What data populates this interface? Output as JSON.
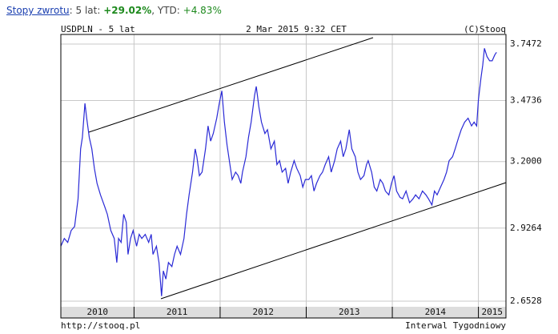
{
  "header": {
    "link": "Stopy zwrotu",
    "period_label": ": 5 lat:",
    "period_return": "+29.02%",
    "ytd_label": ", YTD:",
    "ytd_return": "+4.83%"
  },
  "chart_data": {
    "type": "line",
    "title": "USDPLN - 5 lat",
    "subtitle": "2 Mar 2015 9:32 CET",
    "credit": "(C)Stooq",
    "footer_left": "http://stooq.pl",
    "footer_right": "Interwal Tygodniowy",
    "log_scale": true,
    "grid": true,
    "xlim": [
      2010.15,
      2015.32
    ],
    "xticks": [
      2010,
      2011,
      2012,
      2013,
      2014,
      2015
    ],
    "ylim": [
      2.633,
      3.796
    ],
    "yticks": [
      3.7472,
      3.4736,
      {
        "value": 3.2,
        "label": "3.2000"
      },
      2.9264,
      2.6528
    ],
    "series": [
      {
        "color": "#2a2ad6",
        "x": [
          2010.15,
          2010.19,
          2010.23,
          2010.27,
          2010.31,
          2010.35,
          2010.38,
          2010.4,
          2010.43,
          2010.45,
          2010.48,
          2010.51,
          2010.54,
          2010.57,
          2010.61,
          2010.66,
          2010.69,
          2010.73,
          2010.77,
          2010.8,
          2010.82,
          2010.85,
          2010.88,
          2010.91,
          2010.93,
          2010.96,
          2010.99,
          2011.03,
          2011.06,
          2011.09,
          2011.13,
          2011.17,
          2011.2,
          2011.22,
          2011.26,
          2011.29,
          2011.32,
          2011.34,
          2011.37,
          2011.4,
          2011.44,
          2011.47,
          2011.5,
          2011.54,
          2011.58,
          2011.61,
          2011.64,
          2011.68,
          2011.71,
          2011.73,
          2011.76,
          2011.79,
          2011.83,
          2011.86,
          2011.89,
          2011.92,
          2011.96,
          2011.99,
          2012.02,
          2012.05,
          2012.08,
          2012.12,
          2012.14,
          2012.18,
          2012.21,
          2012.24,
          2012.26,
          2012.3,
          2012.33,
          2012.36,
          2012.4,
          2012.42,
          2012.45,
          2012.48,
          2012.52,
          2012.55,
          2012.59,
          2012.63,
          2012.66,
          2012.69,
          2012.72,
          2012.76,
          2012.79,
          2012.82,
          2012.86,
          2012.89,
          2012.93,
          2012.96,
          2012.99,
          2013.03,
          2013.06,
          2013.09,
          2013.12,
          2013.16,
          2013.19,
          2013.22,
          2013.26,
          2013.29,
          2013.33,
          2013.36,
          2013.4,
          2013.43,
          2013.46,
          2013.5,
          2013.53,
          2013.57,
          2013.6,
          2013.63,
          2013.67,
          2013.7,
          2013.72,
          2013.76,
          2013.79,
          2013.82,
          2013.86,
          2013.89,
          2013.92,
          2013.96,
          2013.99,
          2014.02,
          2014.05,
          2014.09,
          2014.12,
          2014.16,
          2014.2,
          2014.24,
          2014.27,
          2014.31,
          2014.35,
          2014.39,
          2014.42,
          2014.46,
          2014.49,
          2014.52,
          2014.56,
          2014.6,
          2014.63,
          2014.66,
          2014.7,
          2014.73,
          2014.77,
          2014.8,
          2014.84,
          2014.88,
          2014.92,
          2014.95,
          2014.98,
          2015.0,
          2015.03,
          2015.05,
          2015.07,
          2015.1,
          2015.13,
          2015.16,
          2015.19,
          2015.21
        ],
        "values": [
          2.856,
          2.886,
          2.871,
          2.917,
          2.933,
          3.044,
          3.255,
          3.306,
          3.46,
          3.392,
          3.306,
          3.255,
          3.171,
          3.108,
          3.06,
          3.012,
          2.981,
          2.917,
          2.886,
          2.794,
          2.886,
          2.871,
          2.981,
          2.95,
          2.825,
          2.886,
          2.917,
          2.856,
          2.902,
          2.886,
          2.902,
          2.871,
          2.902,
          2.825,
          2.856,
          2.794,
          2.671,
          2.763,
          2.733,
          2.794,
          2.779,
          2.825,
          2.856,
          2.825,
          2.886,
          2.981,
          3.06,
          3.155,
          3.255,
          3.221,
          3.14,
          3.155,
          3.255,
          3.357,
          3.289,
          3.323,
          3.392,
          3.46,
          3.519,
          3.374,
          3.272,
          3.171,
          3.124,
          3.155,
          3.14,
          3.108,
          3.155,
          3.221,
          3.306,
          3.374,
          3.498,
          3.54,
          3.443,
          3.374,
          3.323,
          3.34,
          3.255,
          3.289,
          3.187,
          3.204,
          3.155,
          3.171,
          3.108,
          3.155,
          3.204,
          3.171,
          3.14,
          3.092,
          3.124,
          3.124,
          3.14,
          3.076,
          3.108,
          3.14,
          3.155,
          3.187,
          3.221,
          3.155,
          3.204,
          3.255,
          3.289,
          3.221,
          3.255,
          3.34,
          3.255,
          3.221,
          3.155,
          3.124,
          3.14,
          3.187,
          3.204,
          3.155,
          3.092,
          3.076,
          3.124,
          3.108,
          3.076,
          3.06,
          3.108,
          3.14,
          3.076,
          3.05,
          3.044,
          3.076,
          3.028,
          3.044,
          3.06,
          3.044,
          3.076,
          3.06,
          3.044,
          3.019,
          3.076,
          3.06,
          3.092,
          3.124,
          3.155,
          3.204,
          3.221,
          3.255,
          3.306,
          3.34,
          3.374,
          3.392,
          3.357,
          3.374,
          3.357,
          3.478,
          3.581,
          3.643,
          3.726,
          3.685,
          3.664,
          3.664,
          3.693,
          3.706
        ]
      }
    ]
  }
}
